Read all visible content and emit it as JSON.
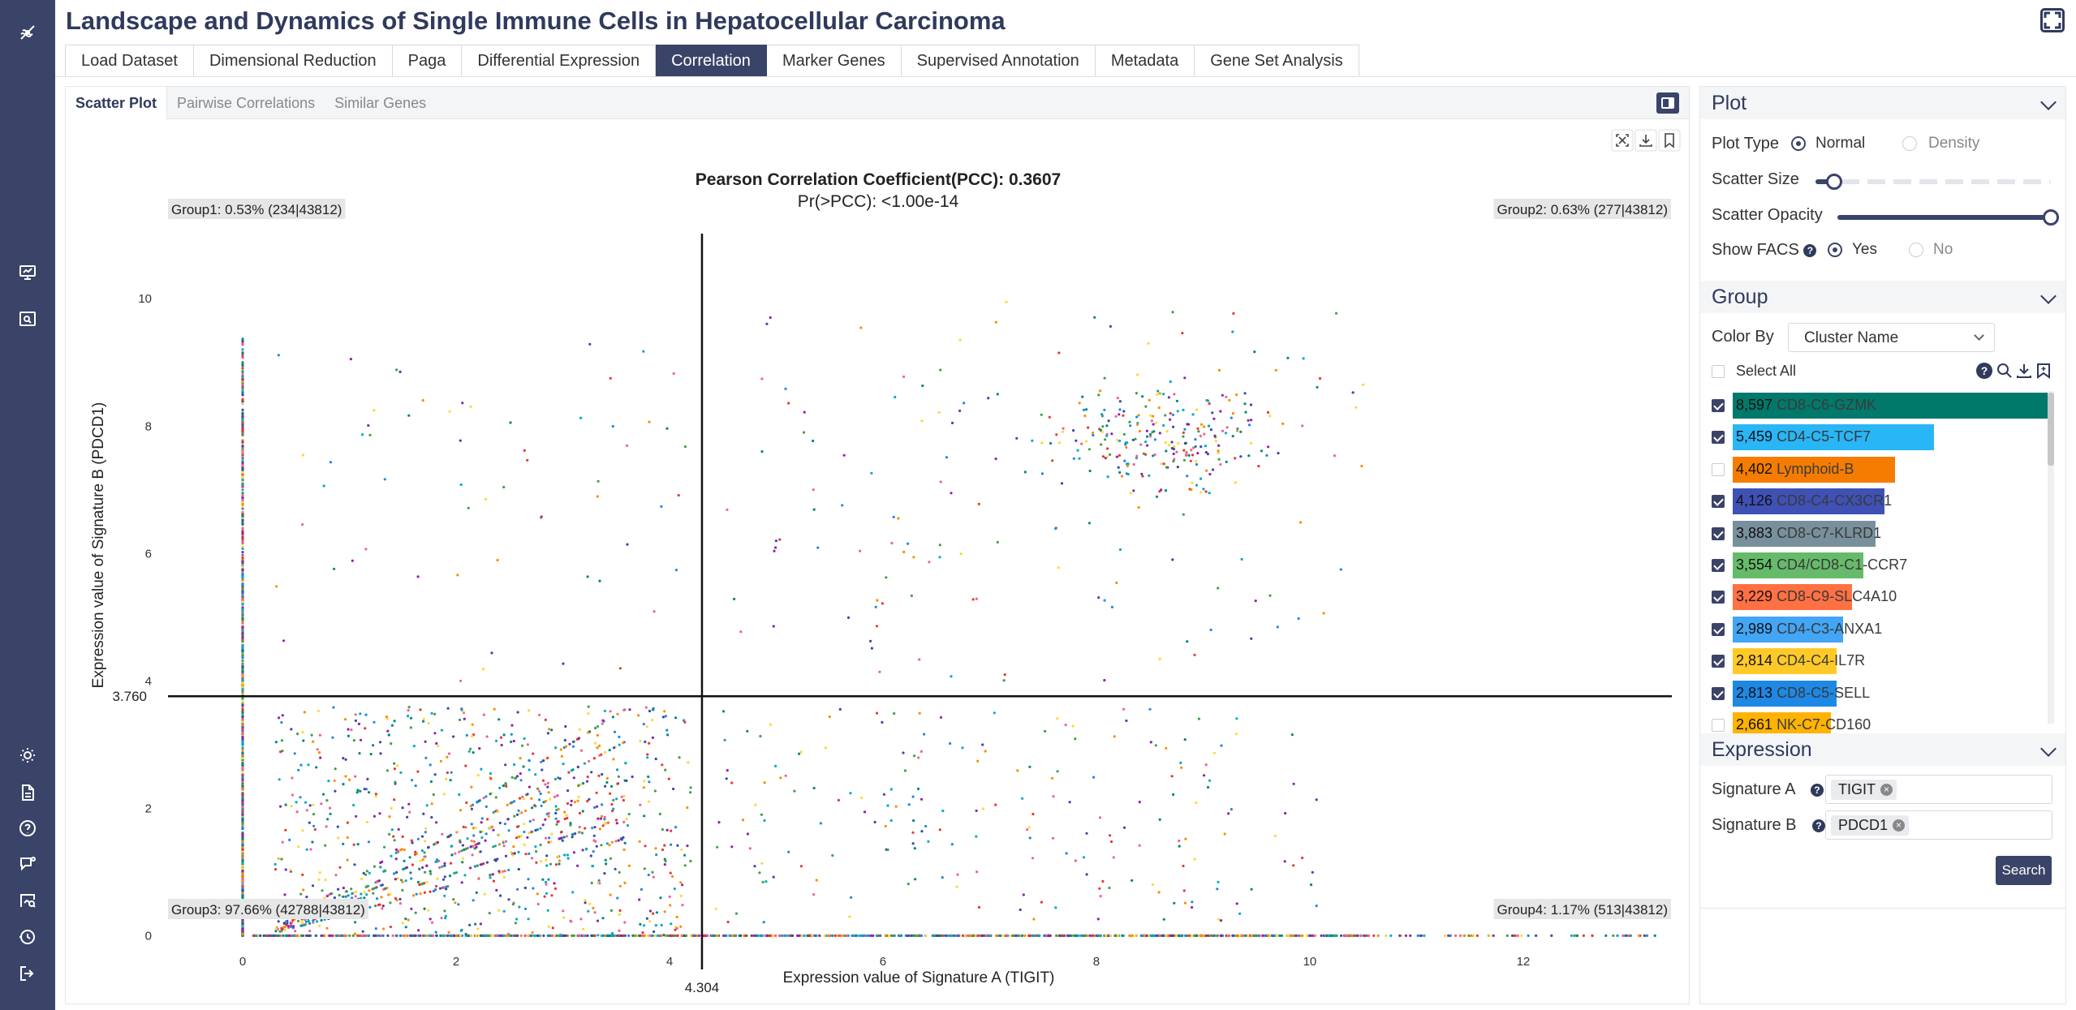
{
  "app": {
    "title": "Landscape and Dynamics of Single Immune Cells in Hepatocellular Carcinoma"
  },
  "main_tabs": [
    {
      "label": "Load Dataset"
    },
    {
      "label": "Dimensional Reduction"
    },
    {
      "label": "Paga"
    },
    {
      "label": "Differential Expression"
    },
    {
      "label": "Correlation",
      "active": true
    },
    {
      "label": "Marker Genes"
    },
    {
      "label": "Supervised Annotation"
    },
    {
      "label": "Metadata"
    },
    {
      "label": "Gene Set Analysis"
    }
  ],
  "sub_tabs": [
    {
      "label": "Scatter Plot",
      "active": true
    },
    {
      "label": "Pairwise Correlations"
    },
    {
      "label": "Similar Genes"
    }
  ],
  "chart_data": {
    "type": "scatter",
    "title": "Pearson Correlation Coefficient(PCC): 0.3607",
    "subtitle": "Pr(>PCC): <1.00e-14",
    "xlabel": "Expression value of Signature A (TIGIT)",
    "ylabel": "Expression value of Signature B (PDCD1)",
    "xlim": [
      -0.7,
      13.4
    ],
    "ylim": [
      -0.3,
      11.2
    ],
    "xticks": [
      0,
      2,
      4,
      6,
      8,
      10,
      12
    ],
    "yticks": [
      0,
      2,
      4,
      6,
      8,
      10
    ],
    "threshold_x": 4.304,
    "threshold_y": 3.76,
    "threshold_x_label": "4.304",
    "threshold_y_label": "3.760",
    "quadrant_labels": {
      "group1": "Group1: 0.53% (234|43812)",
      "group2": "Group2: 0.63% (277|43812)",
      "group3": "Group3: 97.66% (42788|43812)",
      "group4": "Group4: 1.17% (513|43812)"
    },
    "grid": false,
    "legend": "none"
  },
  "plot_panel": {
    "title": "Plot",
    "plot_type_label": "Plot Type",
    "plot_type_options": [
      "Normal",
      "Density"
    ],
    "plot_type_selected": "Normal",
    "scatter_size_label": "Scatter Size",
    "scatter_size_value": 0.08,
    "scatter_opacity_label": "Scatter Opacity",
    "scatter_opacity_value": 1.0,
    "show_facs_label": "Show FACS",
    "show_facs_options": [
      "Yes",
      "No"
    ],
    "show_facs_selected": "Yes"
  },
  "group_panel": {
    "title": "Group",
    "color_by_label": "Color By",
    "color_by_value": "Cluster Name",
    "select_all_label": "Select All",
    "items": [
      {
        "count": "8,597",
        "name": "CD8-C6-GZMK",
        "checked": true,
        "color": "#00796b",
        "fraction": 1.0
      },
      {
        "count": "5,459",
        "name": "CD4-C5-TCF7",
        "checked": true,
        "color": "#29b6f6",
        "fraction": 0.635
      },
      {
        "count": "4,402",
        "name": "Lymphoid-B",
        "checked": false,
        "color": "#f57c00",
        "fraction": 0.512
      },
      {
        "count": "4,126",
        "name": "CD8-C4-CX3CR1",
        "checked": true,
        "color": "#3f51b5",
        "fraction": 0.48
      },
      {
        "count": "3,883",
        "name": "CD8-C7-KLRD1",
        "checked": true,
        "color": "#78909c",
        "fraction": 0.452
      },
      {
        "count": "3,554",
        "name": "CD4/CD8-C1-CCR7",
        "checked": true,
        "color": "#66bb6a",
        "fraction": 0.413
      },
      {
        "count": "3,229",
        "name": "CD8-C9-SLC4A10",
        "checked": true,
        "color": "#ff7043",
        "fraction": 0.376
      },
      {
        "count": "2,989",
        "name": "CD4-C3-ANXA1",
        "checked": true,
        "color": "#42a5f5",
        "fraction": 0.348
      },
      {
        "count": "2,814",
        "name": "CD4-C4-IL7R",
        "checked": true,
        "color": "#ffca28",
        "fraction": 0.327
      },
      {
        "count": "2,813",
        "name": "CD8-C5-SELL",
        "checked": true,
        "color": "#1e88e5",
        "fraction": 0.327
      },
      {
        "count": "2,661",
        "name": "NK-C7-CD160",
        "checked": false,
        "color": "#ffb300",
        "fraction": 0.31
      }
    ]
  },
  "expression_panel": {
    "title": "Expression",
    "signature_a_label": "Signature A",
    "signature_a_tag": "TIGIT",
    "signature_b_label": "Signature B",
    "signature_b_tag": "PDCD1",
    "search_label": "Search"
  },
  "colors": {
    "accent": "#3a4468",
    "title": "#2f3a5c",
    "point_palette": [
      "#e53935",
      "#1e88e5",
      "#43a047",
      "#fb8c00",
      "#8e24aa",
      "#00acc1",
      "#f06292",
      "#fdd835",
      "#3949ab",
      "#00897b"
    ]
  }
}
